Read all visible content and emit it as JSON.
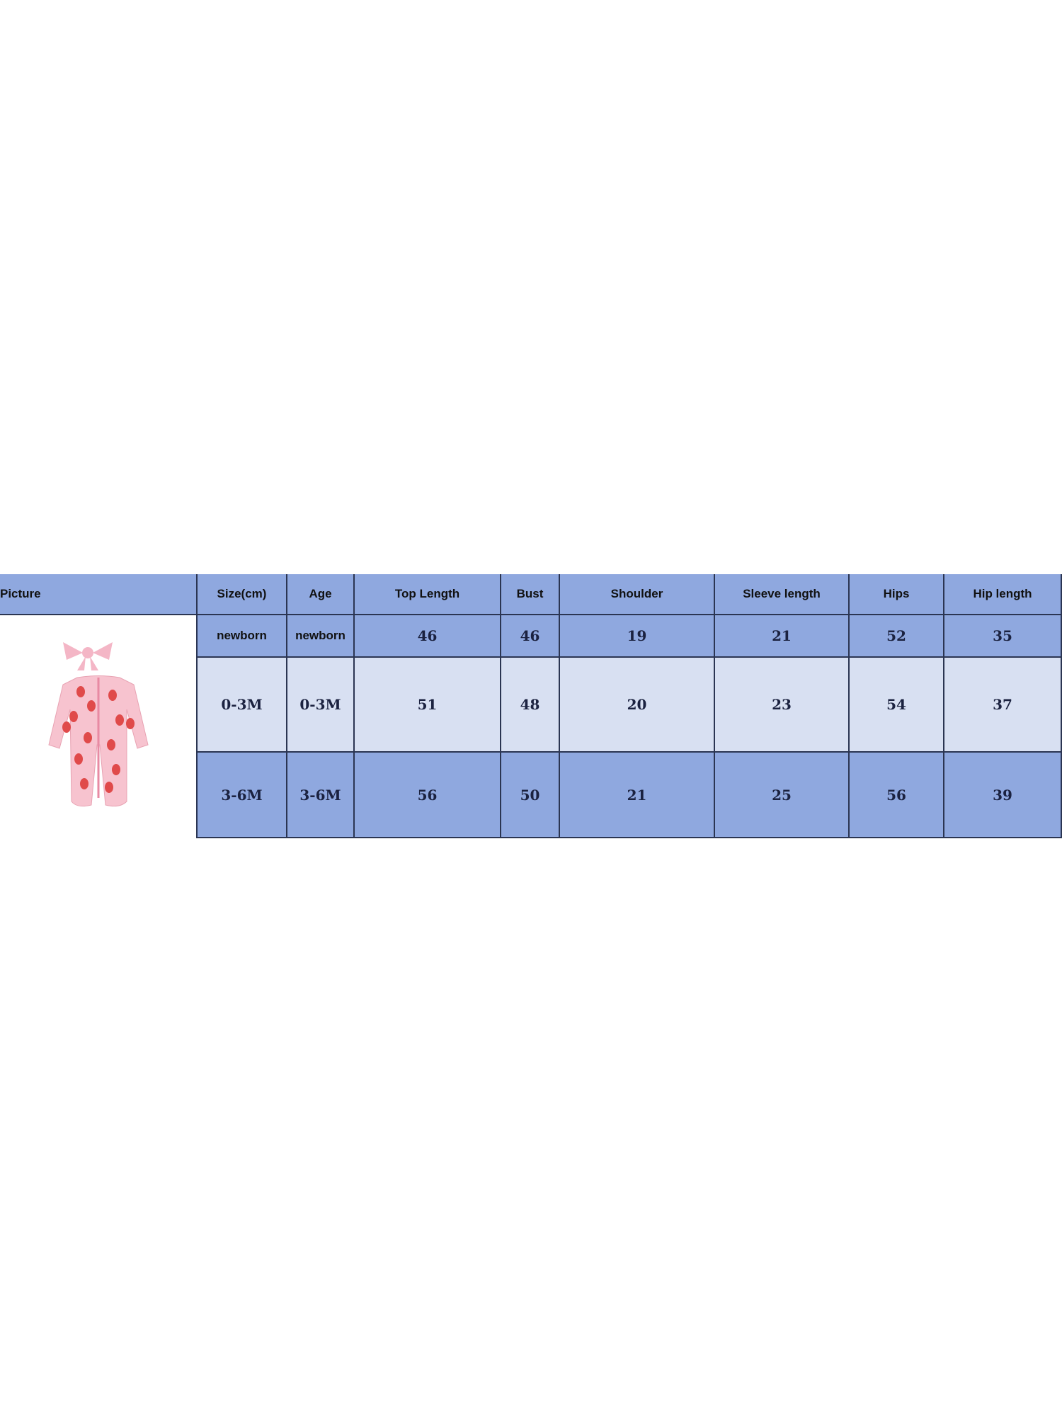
{
  "size_chart": {
    "headers": [
      "Picture",
      "Size(cm)",
      "Age",
      "Top Length",
      "Bust",
      "Shoulder",
      "Sleeve length",
      "Hips",
      "Hip length"
    ],
    "rows": [
      [
        "newborn",
        "newborn",
        "46",
        "46",
        "19",
        "21",
        "52",
        "35"
      ],
      [
        "0-3M",
        "0-3M",
        "51",
        "48",
        "20",
        "23",
        "54",
        "37"
      ],
      [
        "3-6M",
        "3-6M",
        "56",
        "50",
        "21",
        "25",
        "56",
        "39"
      ]
    ],
    "picture": "pink strawberry-print footed romper with headband bow"
  },
  "colors": {
    "header": "#8fa8df",
    "row_dark": "#8fa8df",
    "row_light": "#d8e0f2",
    "border": "#2b3552"
  }
}
